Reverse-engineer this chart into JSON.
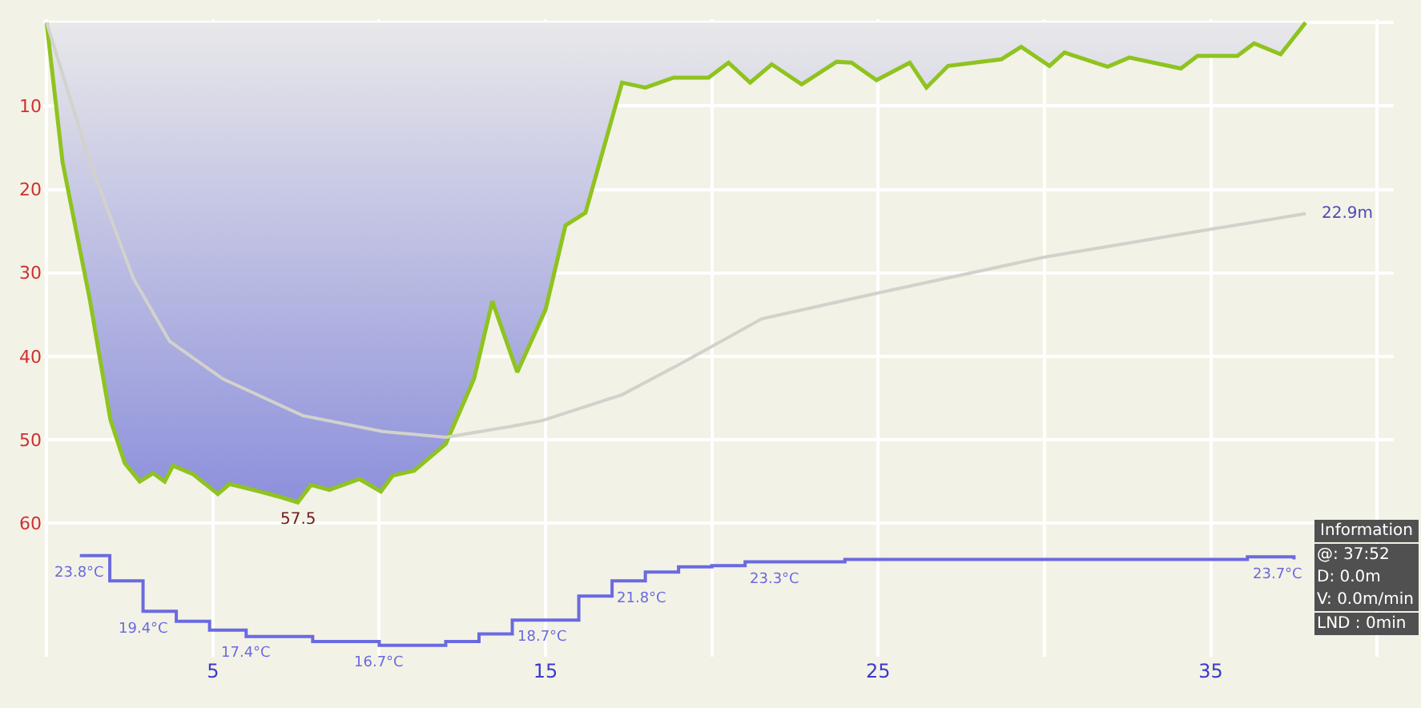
{
  "chart_data": {
    "type": "area",
    "xlim": [
      -0.1,
      40.5
    ],
    "xticks": [
      {
        "value": 0,
        "label": null
      },
      5,
      {
        "value": 10,
        "label": null
      },
      15,
      {
        "value": 20,
        "label": null
      },
      25,
      {
        "value": 30,
        "label": null
      },
      35,
      {
        "value": 40,
        "label": null
      }
    ],
    "ylim": [
      76,
      -0.4
    ],
    "yticks": [
      {
        "value": 0,
        "label": null
      },
      10,
      20,
      30,
      40,
      50,
      60
    ],
    "y2lim": [
      15.8,
      66.2
    ],
    "grid": true,
    "series": [
      {
        "color": "#8fc31f",
        "x": [
          0,
          0.48,
          1.3,
          1.92,
          2.35,
          2.8,
          3.2,
          3.55,
          3.8,
          4.4,
          5.15,
          5.5,
          6.4,
          7.07,
          7.55,
          7.95,
          8.5,
          9.4,
          10.05,
          10.4,
          11.05,
          12.0,
          12.85,
          13.4,
          14.15,
          15.0,
          15.6,
          16.2,
          17.3,
          18.0,
          18.85,
          19.9,
          20.5,
          21.15,
          21.8,
          22.7,
          23.75,
          24.2,
          24.95,
          25.95,
          26.45,
          27.1,
          28.7,
          29.3,
          30.15,
          30.6,
          31.9,
          32.55,
          34.1,
          34.6,
          35.8,
          36.3,
          37.1,
          37.85
        ],
        "values": [
          0,
          16.7,
          33.2,
          47.6,
          52.8,
          55,
          54,
          55,
          53.1,
          54.1,
          56.5,
          55.3,
          56.2,
          56.9,
          57.5,
          55.4,
          56,
          54.7,
          56.2,
          54.3,
          53.7,
          50.5,
          42.7,
          33.4,
          41.9,
          34.4,
          24.3,
          22.8,
          7.2,
          7.8,
          6.6,
          6.6,
          4.8,
          7.2,
          5.0,
          7.4,
          4.7,
          4.8,
          6.9,
          4.8,
          7.8,
          5.2,
          4.4,
          2.9,
          5.2,
          3.6,
          5.3,
          4.2,
          5.5,
          4.0,
          4.0,
          2.5,
          3.8,
          0
        ]
      },
      {
        "type": "line",
        "color": "#d2d2cc",
        "x": [
          0,
          1.3,
          2.6,
          3.7,
          5.3,
          7.7,
          10.1,
          12.0,
          13.95,
          14.9,
          17.3,
          19.1,
          21.5,
          25,
          30,
          35.1,
          37.85
        ],
        "values": [
          0,
          16.7,
          30.6,
          38.2,
          42.7,
          47.1,
          49,
          49.7,
          48.4,
          47.7,
          44.6,
          40.8,
          35.5,
          32.4,
          28.1,
          24.7,
          22.9
        ]
      },
      {
        "type": "step",
        "axis": "y2",
        "color": "#6a6ae0",
        "x": [
          1.0,
          1.9,
          2.9,
          3.9,
          4.9,
          6.0,
          8.0,
          10.0,
          12.0,
          13.0,
          14.0,
          16.0,
          17.0,
          18.0,
          19.0,
          20.0,
          21.0,
          24.0,
          36.1,
          37.5
        ],
        "values": [
          23.8,
          21.8,
          19.4,
          18.6,
          17.9,
          17.4,
          17.0,
          16.7,
          17.0,
          17.6,
          18.7,
          20.6,
          21.8,
          22.5,
          22.9,
          23.0,
          23.3,
          23.5,
          23.7,
          23.5
        ],
        "value_labels": [
          "23.8°C",
          null,
          "19.4°C",
          null,
          null,
          "17.4°C",
          null,
          "16.7°C",
          null,
          null,
          "18.7°C",
          null,
          "21.8°C",
          null,
          null,
          null,
          "23.3°C",
          null,
          "23.7°C",
          null
        ]
      }
    ],
    "annotations": [
      {
        "text": "57.5",
        "x": 7.55,
        "y": 57.5
      },
      {
        "text": "22.9m",
        "x": 37.85,
        "y": 22.9
      },
      "Information",
      "@: 37:52",
      "D: 0.0m",
      "V: 0.0m/min",
      "LND : 0min"
    ]
  }
}
